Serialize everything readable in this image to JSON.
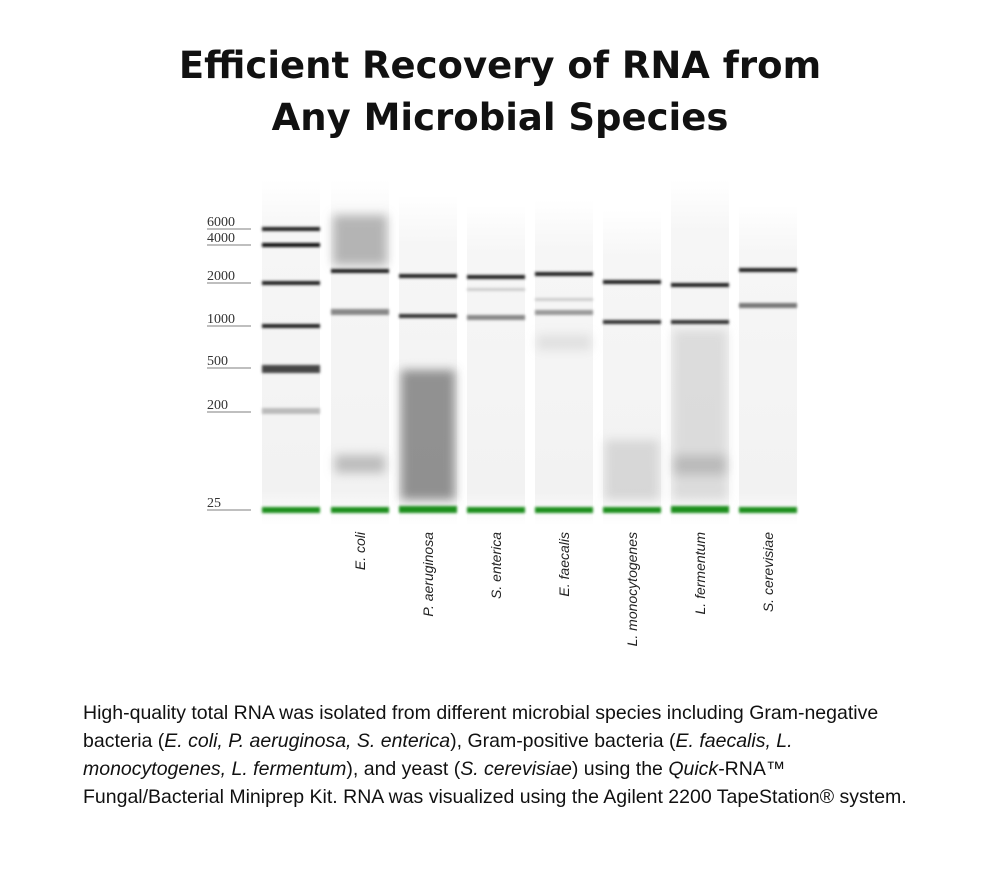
{
  "header": {
    "title_lines": [
      "Efficient Recovery of RNA from",
      "Any Microbial Species"
    ]
  },
  "ladder": {
    "labels": [
      "6000",
      "4000",
      "2000",
      "1000",
      "500",
      "200",
      "25"
    ]
  },
  "lanes": {
    "labels": [
      "E. coli",
      "P. aeruginosa",
      "S. enterica",
      "E. faecalis",
      "L. monocytogenes",
      "L. fermentum",
      "S. cerevisiae"
    ]
  },
  "caption": {
    "parts": [
      "High-quality total RNA was isolated from different microbial species including Gram-negative bacteria (",
      "E. coli, P. aeruginosa, S. enterica",
      "), Gram-positive bacteria (",
      "E. faecalis, L. monocytogenes, L. fermentum",
      "), and yeast (",
      "S. cerevisiae",
      ") using the ",
      "Quick",
      "-RNA™ Fungal/Bacterial Miniprep Kit. RNA was visualized using the Agilent 2200 TapeStation® system."
    ]
  }
}
